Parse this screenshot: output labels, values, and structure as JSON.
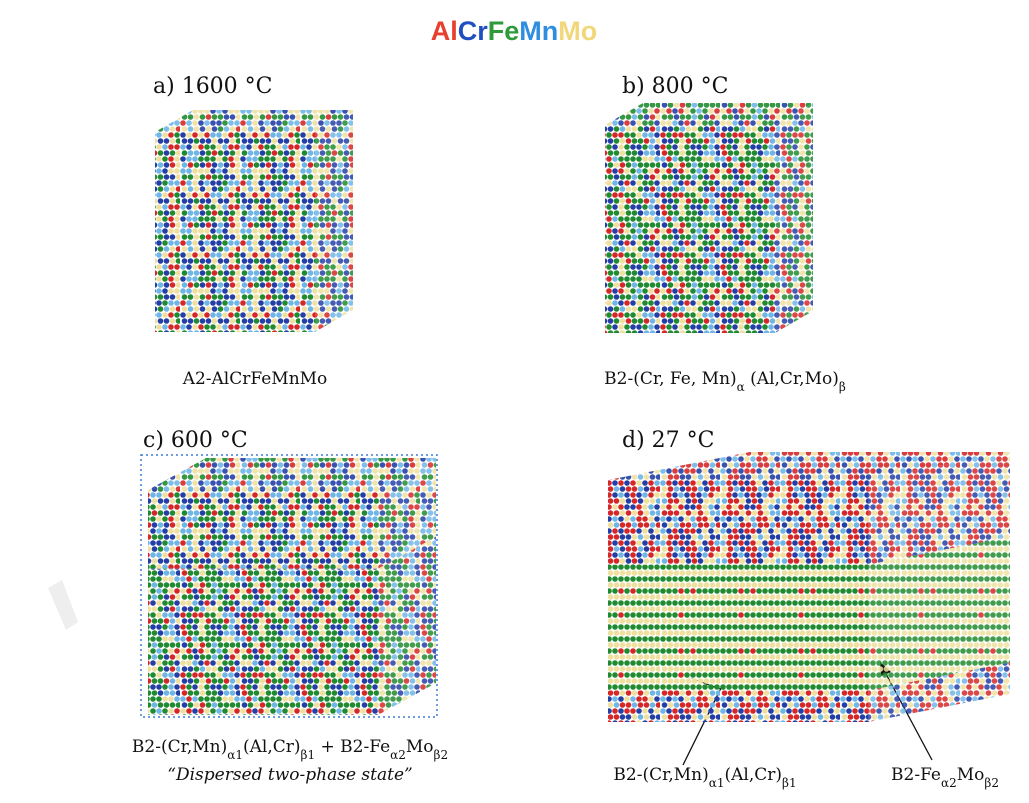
{
  "title": [
    {
      "text": "Al",
      "color": "#e8402f"
    },
    {
      "text": "Cr",
      "color": "#1f4fc0"
    },
    {
      "text": "Fe",
      "color": "#2e9a3a"
    },
    {
      "text": "Mn",
      "color": "#2f8ee0"
    },
    {
      "text": "Mo",
      "color": "#f2d77a"
    }
  ],
  "panels": [
    {
      "label": "a) 1600 °C",
      "caption": [
        {
          "text": "A2-AlCrFeMnMo"
        }
      ]
    },
    {
      "label": "b) 800 °C",
      "caption": [
        {
          "text": "B2-(Cr, Fe, Mn)"
        },
        {
          "text": "α",
          "sub": true
        },
        {
          "text": " (Al,Cr,Mo)"
        },
        {
          "text": "β",
          "sub": true
        }
      ]
    },
    {
      "label": "c) 600 °C",
      "caption": [
        {
          "text": "B2-(Cr,Mn)"
        },
        {
          "text": "α1",
          "sub": true
        },
        {
          "text": "(Al,Cr)"
        },
        {
          "text": "β1",
          "sub": true
        },
        {
          "text": " + B2-Fe"
        },
        {
          "text": "α2",
          "sub": true
        },
        {
          "text": "Mo"
        },
        {
          "text": "β2",
          "sub": true
        }
      ],
      "note": "“Dispersed two-phase state”"
    },
    {
      "label": "d) 27 °C",
      "annotations": [
        [
          {
            "text": "B2-(Cr,Mn)"
          },
          {
            "text": "α1",
            "sub": true
          },
          {
            "text": "(Al,Cr)"
          },
          {
            "text": "β1",
            "sub": true
          }
        ],
        [
          {
            "text": "B2-Fe"
          },
          {
            "text": "α2",
            "sub": true
          },
          {
            "text": "Mo"
          },
          {
            "text": "β2",
            "sub": true
          }
        ]
      ]
    }
  ]
}
